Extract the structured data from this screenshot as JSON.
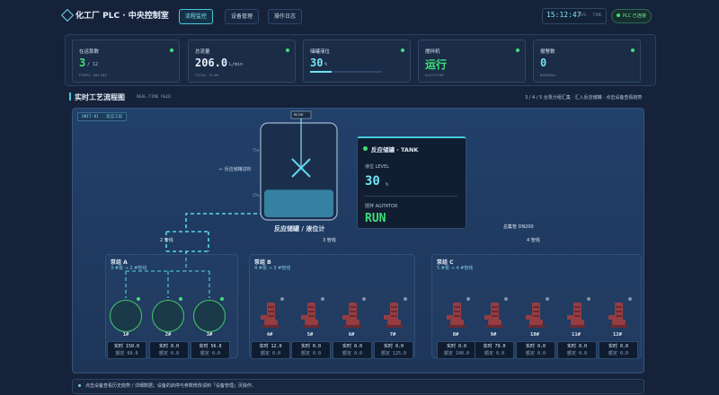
{
  "header": {
    "title": "化工厂 PLC · 中央控制室",
    "nav": [
      "流程监控",
      "设备管理",
      "操作日志"
    ],
    "time": "15:12:47",
    "time_label": "SYS · TIME",
    "plc_status": "PLC 已连接"
  },
  "stats": [
    {
      "label": "在运泵数",
      "value": "3",
      "unit": "/ 12",
      "sub": "PUMPS ONLINE"
    },
    {
      "label": "总流量",
      "value": "206.0",
      "unit": "L/min",
      "sub": "TOTAL FLOW"
    },
    {
      "label": "储罐液位",
      "value": 30,
      "unit": "%"
    },
    {
      "label": "搅拌机",
      "value": "运行",
      "sub": "AGITATOR"
    },
    {
      "label": "报警数",
      "value": "0",
      "sub": "NOMINAL"
    }
  ],
  "section": {
    "title": "实时工艺流程图",
    "subtitle": "REAL-TIME P&ID",
    "note": "3 / 4 / 5 台泵分组汇集 · 汇入反应储罐 · 点击设备查看趋势"
  },
  "diagram": {
    "unit_tag": "UNIT-01 · 反应工段",
    "motor": "MOTOR",
    "feed": "← 反应储罐进料",
    "tank_ticks": [
      "75%",
      "25%"
    ],
    "tank_label": "反应储罐 / 液位计",
    "level": 30,
    "header_pipe": "总集管 DN200",
    "lines": [
      "2 管线",
      "3 管线",
      "4 管线"
    ]
  },
  "tank_card": {
    "title": "反应储罐 · TANK",
    "level_label": "液位 LEVEL",
    "level": 30,
    "unit": "%",
    "agitator_label": "搅拌 AGITATOR",
    "agitator": "RUN"
  },
  "labels": {
    "realtime": "实时",
    "rated": "额定"
  },
  "groups": [
    {
      "name": "泵组 A",
      "desc": "3 #泵 → 2 #管线",
      "pumps": [
        {
          "id": "1#",
          "running": true,
          "realtime": "150.0",
          "rated": "60.0"
        },
        {
          "id": "2#",
          "running": true,
          "realtime": "0.0",
          "rated": "0.0"
        },
        {
          "id": "3#",
          "running": true,
          "realtime": "56.0",
          "rated": "0.0"
        }
      ]
    },
    {
      "name": "泵组 B",
      "desc": "4 #泵 → 3 #管线",
      "pumps": [
        {
          "id": "4#",
          "running": false,
          "realtime": "12.0",
          "rated": "0.0"
        },
        {
          "id": "5#",
          "running": false,
          "realtime": "0.0",
          "rated": "0.0"
        },
        {
          "id": "6#",
          "running": false,
          "realtime": "0.0",
          "rated": "0.0"
        },
        {
          "id": "7#",
          "running": false,
          "realtime": "0.0",
          "rated": "125.0"
        }
      ]
    },
    {
      "name": "泵组 C",
      "desc": "5 #泵 → 4 #管线",
      "pumps": [
        {
          "id": "8#",
          "running": false,
          "realtime": "0.0",
          "rated": "100.0"
        },
        {
          "id": "9#",
          "running": false,
          "realtime": "79.0",
          "rated": "0.0"
        },
        {
          "id": "10#",
          "running": false,
          "realtime": "0.0",
          "rated": "0.0"
        },
        {
          "id": "11#",
          "running": false,
          "realtime": "0.0",
          "rated": "0.0"
        },
        {
          "id": "12#",
          "running": false,
          "realtime": "0.0",
          "rated": "0.0"
        }
      ]
    }
  ],
  "footer": "点击设备查看历史趋势 / 详细数据；设备的启停与参数修改请到「设备管理」页操作。"
}
